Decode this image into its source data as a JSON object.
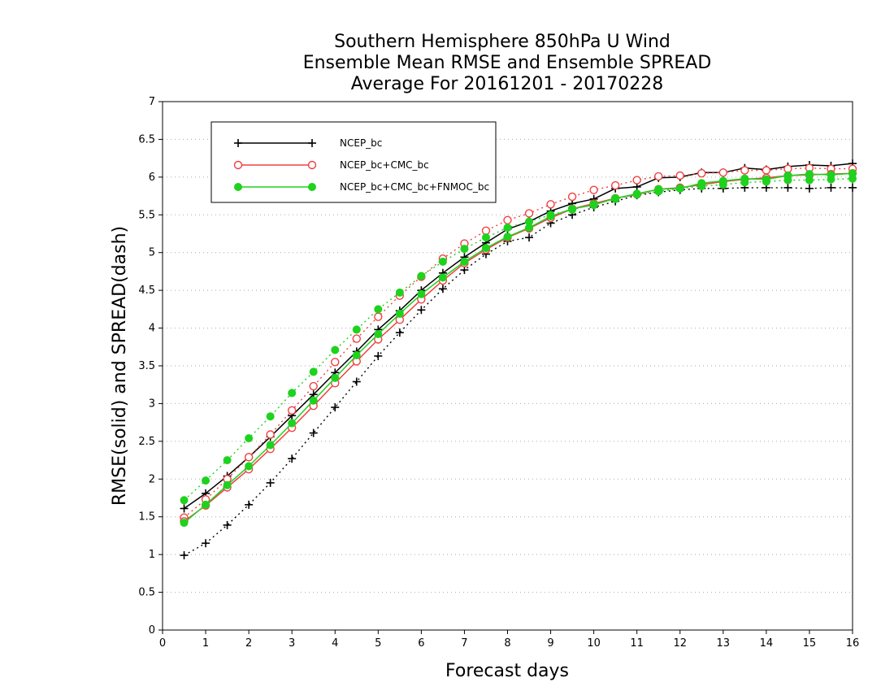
{
  "chart_data": {
    "type": "line",
    "title": [
      "Southern Hemisphere 850hPa U Wind",
      "Ensemble Mean RMSE and Ensemble SPREAD",
      "Average For 20161201 - 20170228"
    ],
    "xlabel": "Forecast days",
    "ylabel": "RMSE(solid) and SPREAD(dash)",
    "xlim": [
      0,
      16
    ],
    "ylim": [
      0,
      7
    ],
    "xticks": [
      0,
      1,
      2,
      3,
      4,
      5,
      6,
      7,
      8,
      9,
      10,
      11,
      12,
      13,
      14,
      15,
      16
    ],
    "yticks": [
      0,
      0.5,
      1,
      1.5,
      2,
      2.5,
      3,
      3.5,
      4,
      4.5,
      5,
      5.5,
      6,
      6.5,
      7
    ],
    "ytick_labels": [
      "0",
      "0.5",
      "1",
      "1.5",
      "2",
      "2.5",
      "3",
      "3.5",
      "4",
      "4.5",
      "5",
      "5.5",
      "6",
      "6.5",
      "7"
    ],
    "grid": "horizontal dotted",
    "legend_position": "top-left",
    "x": [
      0.5,
      1,
      1.5,
      2,
      2.5,
      3,
      3.5,
      4,
      4.5,
      5,
      5.5,
      6,
      6.5,
      7,
      7.5,
      8,
      8.5,
      9,
      9.5,
      10,
      10.5,
      11,
      11.5,
      12,
      12.5,
      13,
      13.5,
      14,
      14.5,
      15,
      15.5,
      16
    ],
    "series": [
      {
        "name": "NCEP_bc",
        "color": "#000000",
        "marker": "plus",
        "rmse": [
          1.61,
          1.81,
          2.04,
          2.29,
          2.56,
          2.84,
          3.12,
          3.41,
          3.69,
          3.98,
          4.23,
          4.5,
          4.73,
          4.94,
          5.13,
          5.31,
          5.41,
          5.55,
          5.65,
          5.71,
          5.85,
          5.87,
          5.99,
          6.0,
          6.06,
          6.06,
          6.12,
          6.1,
          6.14,
          6.16,
          6.15,
          6.18
        ],
        "spread": [
          0.99,
          1.15,
          1.39,
          1.66,
          1.95,
          2.27,
          2.61,
          2.95,
          3.29,
          3.63,
          3.94,
          4.24,
          4.52,
          4.77,
          4.98,
          5.15,
          5.2,
          5.39,
          5.5,
          5.6,
          5.68,
          5.76,
          5.8,
          5.83,
          5.85,
          5.85,
          5.86,
          5.86,
          5.86,
          5.85,
          5.86,
          5.86
        ]
      },
      {
        "name": "NCEP_bc+CMC_bc",
        "color": "#f04040",
        "marker": "open-circle",
        "rmse": [
          1.44,
          1.65,
          1.89,
          2.13,
          2.4,
          2.68,
          2.97,
          3.27,
          3.56,
          3.85,
          4.11,
          4.38,
          4.63,
          4.86,
          5.04,
          5.2,
          5.32,
          5.46,
          5.58,
          5.65,
          5.72,
          5.77,
          5.84,
          5.86,
          5.9,
          5.94,
          5.97,
          5.99,
          6.02,
          6.03,
          6.04,
          6.05
        ],
        "spread": [
          1.49,
          1.73,
          2.0,
          2.29,
          2.59,
          2.91,
          3.23,
          3.55,
          3.86,
          4.15,
          4.43,
          4.68,
          4.92,
          5.12,
          5.29,
          5.43,
          5.52,
          5.64,
          5.74,
          5.83,
          5.89,
          5.96,
          6.01,
          6.02,
          6.05,
          6.06,
          6.09,
          6.09,
          6.11,
          6.12,
          6.11,
          6.11
        ]
      },
      {
        "name": "NCEP_bc+CMC_bc+FNMOC_bc",
        "color": "#1ed21e",
        "marker": "filled-circle",
        "rmse": [
          1.42,
          1.66,
          1.92,
          2.17,
          2.45,
          2.74,
          3.04,
          3.34,
          3.64,
          3.92,
          4.19,
          4.45,
          4.67,
          4.88,
          5.06,
          5.21,
          5.33,
          5.48,
          5.58,
          5.63,
          5.72,
          5.78,
          5.84,
          5.85,
          5.92,
          5.95,
          5.98,
          5.97,
          6.02,
          6.04,
          6.03,
          6.05
        ],
        "spread": [
          1.72,
          1.98,
          2.25,
          2.54,
          2.83,
          3.14,
          3.42,
          3.71,
          3.98,
          4.25,
          4.47,
          4.69,
          4.88,
          5.05,
          5.2,
          5.33,
          5.41,
          5.5,
          5.57,
          5.64,
          5.71,
          5.77,
          5.81,
          5.85,
          5.88,
          5.9,
          5.93,
          5.94,
          5.96,
          5.96,
          5.97,
          5.98
        ]
      }
    ]
  }
}
